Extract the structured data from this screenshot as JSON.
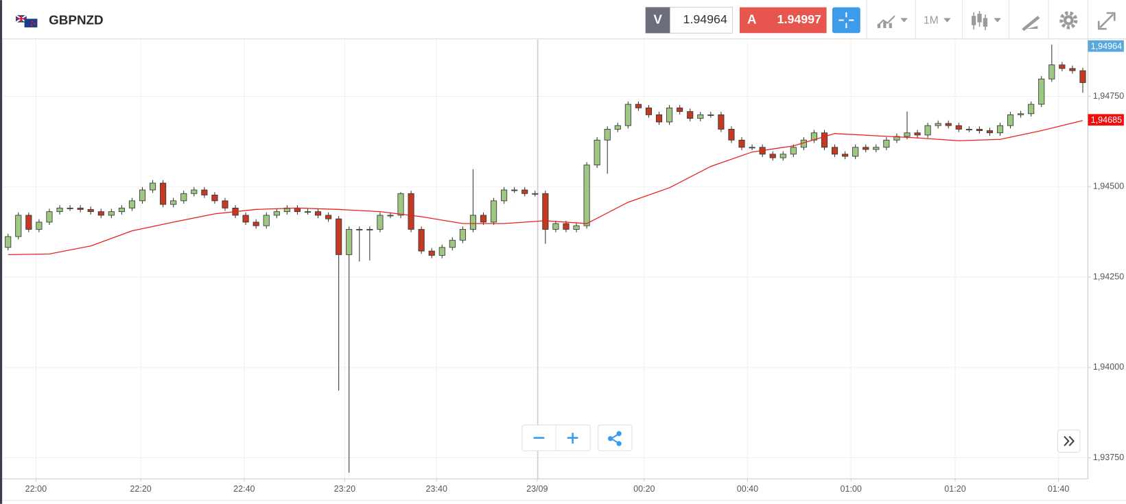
{
  "header": {
    "symbol": "GBPNZD",
    "sell_label": "V",
    "sell_price": "1.94964",
    "buy_label": "A",
    "buy_price": "1.94997",
    "timeframe": "1M"
  },
  "chart_data": {
    "type": "candlestick",
    "up_color": "#9dc782",
    "down_color": "#c23a22",
    "grid": true,
    "open": [
      1.94332,
      1.94362,
      1.94421,
      1.94382,
      1.94402,
      1.94431,
      1.94441,
      1.94441,
      1.94437,
      1.94431,
      1.94421,
      1.94431,
      1.94441,
      1.94461,
      1.94491,
      1.9451,
      1.94451,
      1.94461,
      1.94481,
      1.94491,
      1.94477,
      1.94461,
      1.94441,
      1.94421,
      1.94402,
      1.94392,
      1.94421,
      1.94431,
      1.94441,
      1.94431,
      1.94431,
      1.94421,
      1.94411,
      1.94312,
      1.94382,
      1.94382,
      1.94382,
      1.94421,
      1.94421,
      1.94481,
      1.94382,
      1.94322,
      1.9431,
      1.94332,
      1.94352,
      1.94382,
      1.94421,
      1.94402,
      1.94461,
      1.94491,
      1.94491,
      1.94481,
      1.94481,
      1.94382,
      1.94398,
      1.94382,
      1.94392,
      1.9456,
      1.94629,
      1.94659,
      1.94669,
      1.94728,
      1.94718,
      1.94699,
      1.94679,
      1.94718,
      1.94708,
      1.94689,
      1.94699,
      1.94699,
      1.94659,
      1.94629,
      1.94609,
      1.94609,
      1.9459,
      1.9458,
      1.9459,
      1.94609,
      1.94629,
      1.94649,
      1.94609,
      1.9459,
      1.94584,
      1.94609,
      1.94603,
      1.94609,
      1.94629,
      1.94639,
      1.94649,
      1.94643,
      1.94669,
      1.94675,
      1.94669,
      1.94659,
      1.94659,
      1.94655,
      1.94649,
      1.94669,
      1.94699,
      1.94702,
      1.94728,
      1.94798,
      1.94837,
      1.94827,
      1.94821
    ],
    "high": [
      1.9437,
      1.94429,
      1.94429,
      1.9441,
      1.94439,
      1.94449,
      1.94449,
      1.94449,
      1.94445,
      1.94439,
      1.94439,
      1.94449,
      1.94469,
      1.94499,
      1.94518,
      1.94518,
      1.94469,
      1.94489,
      1.94499,
      1.94499,
      1.94485,
      1.94469,
      1.94449,
      1.94429,
      1.9441,
      1.94429,
      1.94439,
      1.94449,
      1.94449,
      1.94439,
      1.94439,
      1.94429,
      1.94419,
      1.9439,
      1.9439,
      1.9439,
      1.94429,
      1.94429,
      1.94485,
      1.94489,
      1.9439,
      1.9433,
      1.9434,
      1.9436,
      1.9439,
      1.94548,
      1.94429,
      1.94469,
      1.94499,
      1.94499,
      1.94499,
      1.94489,
      1.94489,
      1.94406,
      1.94406,
      1.944,
      1.94568,
      1.94637,
      1.94667,
      1.94677,
      1.94736,
      1.94736,
      1.94726,
      1.94707,
      1.94726,
      1.94726,
      1.94716,
      1.94707,
      1.94707,
      1.94707,
      1.94667,
      1.94637,
      1.94617,
      1.94617,
      1.94598,
      1.94598,
      1.94617,
      1.94637,
      1.94657,
      1.94657,
      1.94617,
      1.94598,
      1.94617,
      1.94617,
      1.94617,
      1.94637,
      1.94647,
      1.94708,
      1.94657,
      1.94677,
      1.94683,
      1.94683,
      1.94677,
      1.94667,
      1.94667,
      1.94663,
      1.94677,
      1.94707,
      1.9471,
      1.94736,
      1.94806,
      1.94893,
      1.94845,
      1.94835,
      1.94829
    ],
    "low": [
      1.94324,
      1.94354,
      1.94374,
      1.94374,
      1.94394,
      1.94423,
      1.94433,
      1.94429,
      1.94423,
      1.94413,
      1.94413,
      1.94423,
      1.94433,
      1.94453,
      1.94483,
      1.94443,
      1.94443,
      1.94453,
      1.94473,
      1.94469,
      1.94453,
      1.94433,
      1.94413,
      1.94394,
      1.94384,
      1.94384,
      1.94413,
      1.94423,
      1.94423,
      1.94423,
      1.94413,
      1.94403,
      1.93936,
      1.93709,
      1.94293,
      1.94296,
      1.94374,
      1.94413,
      1.94413,
      1.94374,
      1.94314,
      1.94302,
      1.94302,
      1.94324,
      1.94344,
      1.94374,
      1.94394,
      1.94394,
      1.94453,
      1.94483,
      1.94473,
      1.94473,
      1.94342,
      1.94374,
      1.94374,
      1.94374,
      1.94384,
      1.94552,
      1.94536,
      1.94651,
      1.94661,
      1.9471,
      1.94691,
      1.94671,
      1.94671,
      1.947,
      1.94681,
      1.94681,
      1.94691,
      1.94651,
      1.94621,
      1.94601,
      1.94601,
      1.94582,
      1.94572,
      1.94572,
      1.94582,
      1.94601,
      1.94621,
      1.94601,
      1.94582,
      1.94576,
      1.94576,
      1.94595,
      1.94595,
      1.94601,
      1.94621,
      1.94631,
      1.94635,
      1.94635,
      1.94661,
      1.94661,
      1.94651,
      1.94651,
      1.94647,
      1.94641,
      1.94641,
      1.94661,
      1.94691,
      1.94694,
      1.9472,
      1.9479,
      1.94819,
      1.94813,
      1.9476
    ],
    "close": [
      1.94362,
      1.94421,
      1.94382,
      1.94402,
      1.94431,
      1.94441,
      1.94441,
      1.94437,
      1.94431,
      1.94421,
      1.94431,
      1.94441,
      1.94461,
      1.94491,
      1.9451,
      1.94451,
      1.94461,
      1.94481,
      1.94491,
      1.94477,
      1.94461,
      1.94441,
      1.94421,
      1.94402,
      1.94392,
      1.94421,
      1.94431,
      1.94441,
      1.94431,
      1.94431,
      1.94421,
      1.94411,
      1.94312,
      1.94382,
      1.94382,
      1.94382,
      1.94421,
      1.94421,
      1.94481,
      1.94382,
      1.94322,
      1.9431,
      1.94332,
      1.94352,
      1.94382,
      1.94421,
      1.94402,
      1.94461,
      1.94491,
      1.94491,
      1.94481,
      1.94481,
      1.94382,
      1.94398,
      1.94382,
      1.94392,
      1.9456,
      1.94629,
      1.94659,
      1.94669,
      1.94728,
      1.94718,
      1.94699,
      1.94679,
      1.94718,
      1.94708,
      1.94689,
      1.94699,
      1.94699,
      1.94659,
      1.94629,
      1.94609,
      1.94609,
      1.9459,
      1.9458,
      1.9459,
      1.94609,
      1.94629,
      1.94649,
      1.94609,
      1.9459,
      1.94584,
      1.94609,
      1.94603,
      1.94609,
      1.94629,
      1.94639,
      1.94649,
      1.94643,
      1.94669,
      1.94675,
      1.94669,
      1.94659,
      1.94659,
      1.94655,
      1.94649,
      1.94669,
      1.94699,
      1.94702,
      1.94728,
      1.94798,
      1.94837,
      1.94827,
      1.94821,
      1.94788
    ],
    "ma": {
      "color": "#e8201a",
      "x": [
        0,
        4,
        8,
        12,
        16,
        20,
        24,
        28,
        32,
        36,
        40,
        44,
        48,
        52,
        56,
        60,
        64,
        68,
        72,
        76,
        80,
        84,
        88,
        92,
        96,
        100,
        104
      ],
      "values": [
        1.94312,
        1.94314,
        1.94336,
        1.94378,
        1.94402,
        1.94425,
        1.94437,
        1.94441,
        1.94437,
        1.94431,
        1.94417,
        1.94398,
        1.94398,
        1.94406,
        1.94398,
        1.94457,
        1.94497,
        1.94556,
        1.94596,
        1.94613,
        1.94647,
        1.94641,
        1.94635,
        1.94627,
        1.94631,
        1.94655,
        1.94683
      ]
    },
    "xlim": [
      -0.5,
      104.5
    ],
    "xticks": [
      {
        "value": 2.7,
        "label": "22:00"
      },
      {
        "value": 12.84,
        "label": "22:20"
      },
      {
        "value": 22.85,
        "label": "22:40"
      },
      {
        "value": 32.58,
        "label": "23:20"
      },
      {
        "value": 41.47,
        "label": "23:40"
      },
      {
        "value": 51.2,
        "label": "23/09"
      },
      {
        "value": 61.56,
        "label": "00:20"
      },
      {
        "value": 71.56,
        "label": "00:40"
      },
      {
        "value": 81.57,
        "label": "01:00"
      },
      {
        "value": 91.65,
        "label": "01:20"
      },
      {
        "value": 101.65,
        "label": "01:40"
      }
    ],
    "ylim": [
      1.93692,
      1.94907
    ],
    "yticks": [
      {
        "value": 1.9375,
        "label": "1,93750"
      },
      {
        "value": 1.94,
        "label": "1,94000"
      },
      {
        "value": 1.9425,
        "label": "1,94250"
      },
      {
        "value": 1.945,
        "label": "1,94500"
      },
      {
        "value": 1.9475,
        "label": "1,94750"
      }
    ],
    "price_tags": [
      {
        "value": 1.94964,
        "label": "1,94964",
        "color": "#58a8dc"
      },
      {
        "value": 1.94685,
        "label": "1,94685",
        "color": "#f20d0d"
      }
    ]
  }
}
